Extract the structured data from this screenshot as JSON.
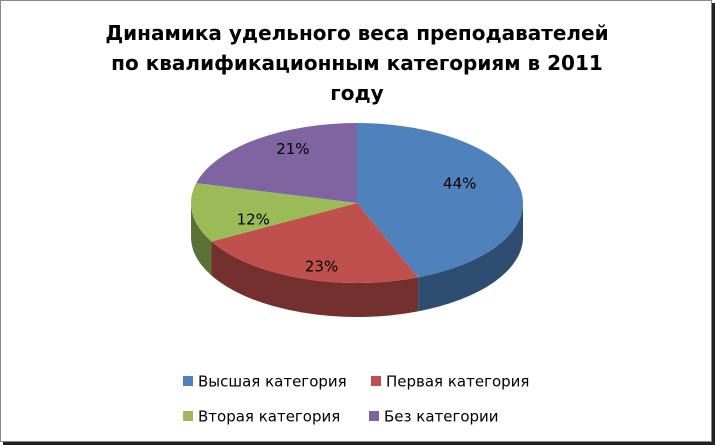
{
  "chart_data": {
    "type": "pie",
    "title": "Динамика удельного веса преподавателей по квалификационным категориям в 2011 году",
    "categories": [
      "Высшая категория",
      "Первая категория",
      "Вторая категория",
      "Без категории"
    ],
    "values": [
      44,
      23,
      12,
      21
    ],
    "value_labels": [
      "44%",
      "23%",
      "12%",
      "21%"
    ],
    "colors": [
      "#4f81bd",
      "#c0504d",
      "#9bbb59",
      "#8064a2"
    ]
  }
}
